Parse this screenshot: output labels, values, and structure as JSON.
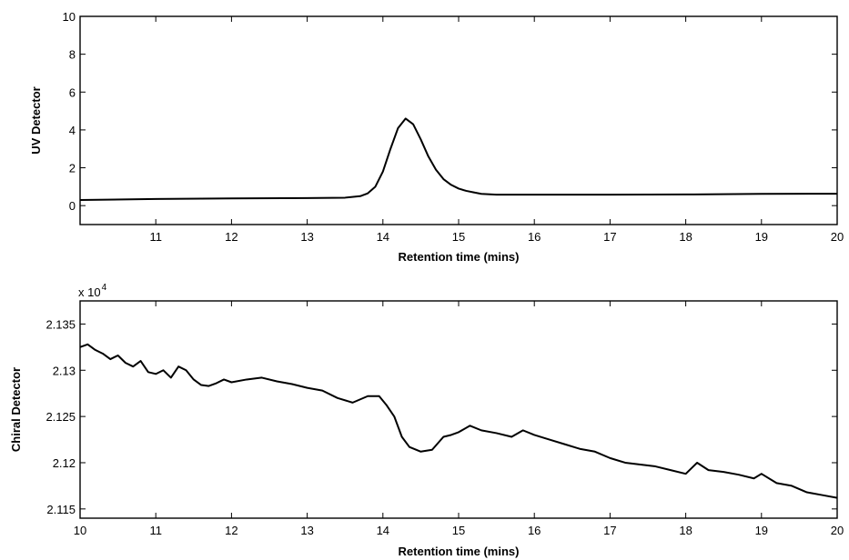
{
  "chart_data": [
    {
      "type": "line",
      "xlabel": "Retention time (mins)",
      "ylabel": "UV Detector",
      "xlim": [
        10,
        20
      ],
      "ylim": [
        -1,
        10
      ],
      "xticks": [
        11,
        12,
        13,
        14,
        15,
        16,
        17,
        18,
        19,
        20
      ],
      "yticks": [
        0,
        2,
        4,
        6,
        8,
        10
      ],
      "exponent_label": "",
      "series": [
        {
          "x": [
            10.0,
            11.0,
            12.0,
            13.0,
            13.5,
            13.7,
            13.8,
            13.9,
            14.0,
            14.1,
            14.2,
            14.3,
            14.4,
            14.5,
            14.6,
            14.7,
            14.8,
            14.9,
            15.0,
            15.1,
            15.2,
            15.3,
            15.5,
            16.0,
            17.0,
            18.0,
            19.0,
            20.0
          ],
          "y": [
            0.3,
            0.35,
            0.38,
            0.4,
            0.42,
            0.5,
            0.65,
            1.0,
            1.8,
            3.0,
            4.1,
            4.6,
            4.3,
            3.5,
            2.6,
            1.9,
            1.4,
            1.1,
            0.9,
            0.78,
            0.7,
            0.62,
            0.58,
            0.58,
            0.58,
            0.59,
            0.62,
            0.63
          ]
        }
      ]
    },
    {
      "type": "line",
      "xlabel": "Retention time (mins)",
      "ylabel": "Chiral Detector",
      "xlim": [
        10,
        20
      ],
      "ylim": [
        2.114,
        2.1375
      ],
      "xticks": [
        10,
        11,
        12,
        13,
        14,
        15,
        16,
        17,
        18,
        19,
        20
      ],
      "yticks": [
        2.115,
        2.12,
        2.125,
        2.13,
        2.135
      ],
      "ytick_labels": [
        "2.115",
        "2.12",
        "2.125",
        "2.13",
        "2.135"
      ],
      "exponent_label": "x 10",
      "exponent_power": "4",
      "series": [
        {
          "x": [
            10.0,
            10.1,
            10.2,
            10.3,
            10.4,
            10.5,
            10.6,
            10.7,
            10.8,
            10.9,
            11.0,
            11.1,
            11.2,
            11.3,
            11.4,
            11.5,
            11.6,
            11.7,
            11.8,
            11.9,
            12.0,
            12.2,
            12.4,
            12.6,
            12.8,
            13.0,
            13.2,
            13.4,
            13.6,
            13.8,
            13.95,
            14.05,
            14.15,
            14.25,
            14.35,
            14.5,
            14.65,
            14.8,
            14.9,
            15.0,
            15.15,
            15.3,
            15.5,
            15.7,
            15.85,
            16.0,
            16.2,
            16.4,
            16.6,
            16.8,
            17.0,
            17.2,
            17.4,
            17.6,
            17.8,
            18.0,
            18.15,
            18.3,
            18.5,
            18.7,
            18.9,
            19.0,
            19.2,
            19.4,
            19.6,
            19.8,
            20.0
          ],
          "y": [
            2.1325,
            2.1328,
            2.1322,
            2.1318,
            2.1312,
            2.1316,
            2.1308,
            2.1304,
            2.131,
            2.1298,
            2.1296,
            2.13,
            2.1292,
            2.1304,
            2.13,
            2.129,
            2.1284,
            2.1283,
            2.1286,
            2.129,
            2.1287,
            2.129,
            2.1292,
            2.1288,
            2.1285,
            2.1281,
            2.1278,
            2.127,
            2.1265,
            2.1272,
            2.1272,
            2.1262,
            2.125,
            2.1228,
            2.1217,
            2.1212,
            2.1214,
            2.1228,
            2.123,
            2.1233,
            2.124,
            2.1235,
            2.1232,
            2.1228,
            2.1235,
            2.123,
            2.1225,
            2.122,
            2.1215,
            2.1212,
            2.1205,
            2.12,
            2.1198,
            2.1196,
            2.1192,
            2.1188,
            2.12,
            2.1192,
            2.119,
            2.1187,
            2.1183,
            2.1188,
            2.1178,
            2.1175,
            2.1168,
            2.1165,
            2.1162
          ]
        }
      ]
    }
  ]
}
